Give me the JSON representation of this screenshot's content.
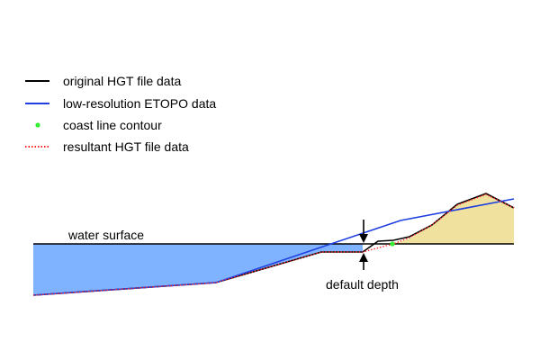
{
  "legend": {
    "items": [
      {
        "label": "original HGT file data",
        "marker": "solid-line",
        "color": "#000000"
      },
      {
        "label": "low-resolution ETOPO data",
        "marker": "solid-line",
        "color": "#1f3fe0"
      },
      {
        "label": "coast line contour",
        "marker": "dot",
        "color": "#33ee33"
      },
      {
        "label": "resultant HGT file data",
        "marker": "dotted-line",
        "color": "#ff2222"
      }
    ]
  },
  "annotations": {
    "water_surface": "water surface",
    "default_depth": "default depth"
  },
  "colors": {
    "water": "#7fb2ff",
    "land": "#f0e29e",
    "original": "#000000",
    "etopo": "#1f3fe0",
    "coast": "#33ee33",
    "resultant": "#ff2222"
  },
  "icons": [
    "arrow-down-icon",
    "arrow-up-icon"
  ]
}
